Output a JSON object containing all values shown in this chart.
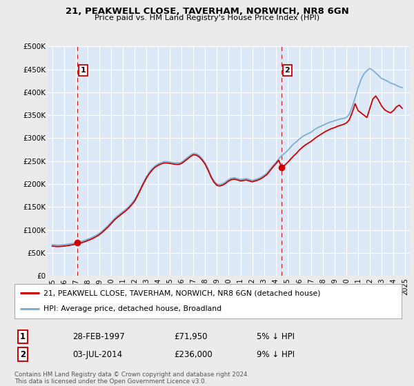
{
  "title_line1": "21, PEAKWELL CLOSE, TAVERHAM, NORWICH, NR8 6GN",
  "title_line2": "Price paid vs. HM Land Registry's House Price Index (HPI)",
  "background_color": "#ebebeb",
  "plot_bg_color": "#dce8f5",
  "grid_color": "#ffffff",
  "sale1_date_num": 1997.15,
  "sale1_price": 71950,
  "sale2_date_num": 2014.5,
  "sale2_price": 236000,
  "red_line_color": "#cc0000",
  "blue_line_color": "#7aafd4",
  "dashed_line_color": "#cc0000",
  "marker_color": "#cc0000",
  "xmin": 1994.6,
  "xmax": 2025.4,
  "ymin": 0,
  "ymax": 500000,
  "yticks": [
    0,
    50000,
    100000,
    150000,
    200000,
    250000,
    300000,
    350000,
    400000,
    450000,
    500000
  ],
  "ytick_labels": [
    "£0",
    "£50K",
    "£100K",
    "£150K",
    "£200K",
    "£250K",
    "£300K",
    "£350K",
    "£400K",
    "£450K",
    "£500K"
  ],
  "xtick_years": [
    1995,
    1996,
    1997,
    1998,
    1999,
    2000,
    2001,
    2002,
    2003,
    2004,
    2005,
    2006,
    2007,
    2008,
    2009,
    2010,
    2011,
    2012,
    2013,
    2014,
    2015,
    2016,
    2017,
    2018,
    2019,
    2020,
    2021,
    2022,
    2023,
    2024,
    2025
  ],
  "legend_label_red": "21, PEAKWELL CLOSE, TAVERHAM, NORWICH, NR8 6GN (detached house)",
  "legend_label_blue": "HPI: Average price, detached house, Broadland",
  "annotation1": "1",
  "annotation2": "2",
  "info1_date": "28-FEB-1997",
  "info1_price": "£71,950",
  "info1_hpi": "5% ↓ HPI",
  "info2_date": "03-JUL-2014",
  "info2_price": "£236,000",
  "info2_hpi": "9% ↓ HPI",
  "footer": "Contains HM Land Registry data © Crown copyright and database right 2024.\nThis data is licensed under the Open Government Licence v3.0.",
  "hpi_data_x": [
    1995.0,
    1995.25,
    1995.5,
    1995.75,
    1996.0,
    1996.25,
    1996.5,
    1996.75,
    1997.0,
    1997.25,
    1997.5,
    1997.75,
    1998.0,
    1998.25,
    1998.5,
    1998.75,
    1999.0,
    1999.25,
    1999.5,
    1999.75,
    2000.0,
    2000.25,
    2000.5,
    2000.75,
    2001.0,
    2001.25,
    2001.5,
    2001.75,
    2002.0,
    2002.25,
    2002.5,
    2002.75,
    2003.0,
    2003.25,
    2003.5,
    2003.75,
    2004.0,
    2004.25,
    2004.5,
    2004.75,
    2005.0,
    2005.25,
    2005.5,
    2005.75,
    2006.0,
    2006.25,
    2006.5,
    2006.75,
    2007.0,
    2007.25,
    2007.5,
    2007.75,
    2008.0,
    2008.25,
    2008.5,
    2008.75,
    2009.0,
    2009.25,
    2009.5,
    2009.75,
    2010.0,
    2010.25,
    2010.5,
    2010.75,
    2011.0,
    2011.25,
    2011.5,
    2011.75,
    2012.0,
    2012.25,
    2012.5,
    2012.75,
    2013.0,
    2013.25,
    2013.5,
    2013.75,
    2014.0,
    2014.25,
    2014.5,
    2014.75,
    2015.0,
    2015.25,
    2015.5,
    2015.75,
    2016.0,
    2016.25,
    2016.5,
    2016.75,
    2017.0,
    2017.25,
    2017.5,
    2017.75,
    2018.0,
    2018.25,
    2018.5,
    2018.75,
    2019.0,
    2019.25,
    2019.5,
    2019.75,
    2020.0,
    2020.25,
    2020.5,
    2020.75,
    2021.0,
    2021.25,
    2021.5,
    2021.75,
    2022.0,
    2022.25,
    2022.5,
    2022.75,
    2023.0,
    2023.25,
    2023.5,
    2023.75,
    2024.0,
    2024.25,
    2024.5,
    2024.75
  ],
  "hpi_data_y": [
    68000,
    67500,
    67000,
    67500,
    68000,
    69000,
    70000,
    71000,
    72500,
    74000,
    75500,
    77500,
    80000,
    82500,
    85500,
    89000,
    93000,
    98000,
    104000,
    110000,
    117000,
    124000,
    130000,
    135000,
    140000,
    145000,
    151000,
    158000,
    166000,
    178000,
    191000,
    204000,
    216000,
    226000,
    234000,
    240000,
    244000,
    247000,
    249000,
    249000,
    248000,
    247000,
    246000,
    246000,
    248000,
    253000,
    258000,
    263000,
    267000,
    266000,
    262000,
    255000,
    246000,
    233000,
    218000,
    207000,
    200000,
    199000,
    201000,
    205000,
    210000,
    213000,
    214000,
    212000,
    210000,
    211000,
    212000,
    210000,
    208000,
    210000,
    212000,
    215000,
    219000,
    224000,
    232000,
    240000,
    247000,
    255000,
    262000,
    267000,
    273000,
    280000,
    287000,
    292000,
    298000,
    303000,
    307000,
    310000,
    313000,
    318000,
    322000,
    325000,
    328000,
    331000,
    334000,
    336000,
    338000,
    340000,
    342000,
    343000,
    345000,
    352000,
    368000,
    388000,
    410000,
    428000,
    440000,
    447000,
    452000,
    448000,
    442000,
    436000,
    430000,
    427000,
    424000,
    420000,
    418000,
    415000,
    412000,
    410000
  ],
  "price_data_x": [
    1995.0,
    1995.25,
    1995.5,
    1995.75,
    1996.0,
    1996.25,
    1996.5,
    1996.75,
    1997.0,
    1997.25,
    1997.5,
    1997.75,
    1998.0,
    1998.25,
    1998.5,
    1998.75,
    1999.0,
    1999.25,
    1999.5,
    1999.75,
    2000.0,
    2000.25,
    2000.5,
    2000.75,
    2001.0,
    2001.25,
    2001.5,
    2001.75,
    2002.0,
    2002.25,
    2002.5,
    2002.75,
    2003.0,
    2003.25,
    2003.5,
    2003.75,
    2004.0,
    2004.25,
    2004.5,
    2004.75,
    2005.0,
    2005.25,
    2005.5,
    2005.75,
    2006.0,
    2006.25,
    2006.5,
    2006.75,
    2007.0,
    2007.25,
    2007.5,
    2007.75,
    2008.0,
    2008.25,
    2008.5,
    2008.75,
    2009.0,
    2009.25,
    2009.5,
    2009.75,
    2010.0,
    2010.25,
    2010.5,
    2010.75,
    2011.0,
    2011.25,
    2011.5,
    2011.75,
    2012.0,
    2012.25,
    2012.5,
    2012.75,
    2013.0,
    2013.25,
    2013.5,
    2013.75,
    2014.0,
    2014.25,
    2014.5,
    2014.75,
    2015.0,
    2015.25,
    2015.5,
    2015.75,
    2016.0,
    2016.25,
    2016.5,
    2016.75,
    2017.0,
    2017.25,
    2017.5,
    2017.75,
    2018.0,
    2018.25,
    2018.5,
    2018.75,
    2019.0,
    2019.25,
    2019.5,
    2019.75,
    2020.0,
    2020.25,
    2020.5,
    2020.75,
    2021.0,
    2021.25,
    2021.5,
    2021.75,
    2022.0,
    2022.25,
    2022.5,
    2022.75,
    2023.0,
    2023.25,
    2023.5,
    2023.75,
    2024.0,
    2024.25,
    2024.5,
    2024.75
  ],
  "price_data_y": [
    65000,
    64500,
    64000,
    64500,
    65000,
    66000,
    67000,
    68000,
    69500,
    71000,
    72500,
    74500,
    77000,
    79500,
    82500,
    86000,
    90000,
    95000,
    101000,
    107000,
    114000,
    121000,
    127000,
    132000,
    137000,
    142000,
    148000,
    155000,
    163000,
    175000,
    188000,
    201000,
    213000,
    223000,
    231000,
    237000,
    241000,
    244000,
    246000,
    246000,
    245000,
    244000,
    243000,
    243000,
    245000,
    250000,
    255000,
    260000,
    264000,
    263000,
    259000,
    252000,
    243000,
    230000,
    215000,
    204000,
    197000,
    196000,
    198000,
    202000,
    207000,
    210000,
    211000,
    209000,
    207000,
    208000,
    209000,
    207000,
    205000,
    207000,
    209000,
    212000,
    216000,
    221000,
    229000,
    237000,
    244000,
    252000,
    236000,
    241000,
    247000,
    254000,
    261000,
    267000,
    274000,
    280000,
    285000,
    289000,
    293000,
    298000,
    303000,
    307000,
    311000,
    315000,
    318000,
    321000,
    323000,
    326000,
    328000,
    330000,
    333000,
    340000,
    356000,
    375000,
    360000,
    355000,
    350000,
    345000,
    365000,
    385000,
    392000,
    382000,
    370000,
    362000,
    358000,
    355000,
    360000,
    368000,
    372000,
    365000
  ]
}
